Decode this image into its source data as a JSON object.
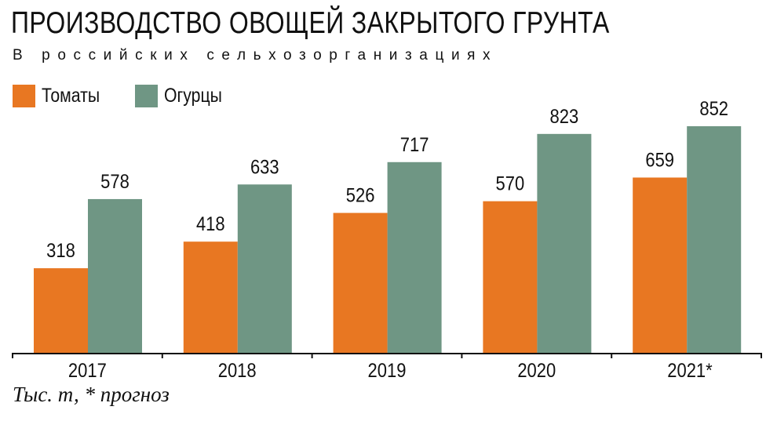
{
  "chart_data": {
    "type": "bar",
    "title": "ПРОИЗВОДСТВО ОВОЩЕЙ ЗАКРЫТОГО ГРУНТА",
    "subtitle": "В российских сельхозорганизациях",
    "categories": [
      "2017",
      "2018",
      "2019",
      "2020",
      "2021*"
    ],
    "series": [
      {
        "name": "Томаты",
        "color": "#e87722",
        "values": [
          318,
          418,
          526,
          570,
          659
        ]
      },
      {
        "name": "Огурцы",
        "color": "#6f9684",
        "values": [
          578,
          633,
          717,
          823,
          852
        ]
      }
    ],
    "ylim": [
      0,
      852
    ],
    "grid": false,
    "legend": "top-left",
    "note": "Тыс. т, * прогноз"
  }
}
